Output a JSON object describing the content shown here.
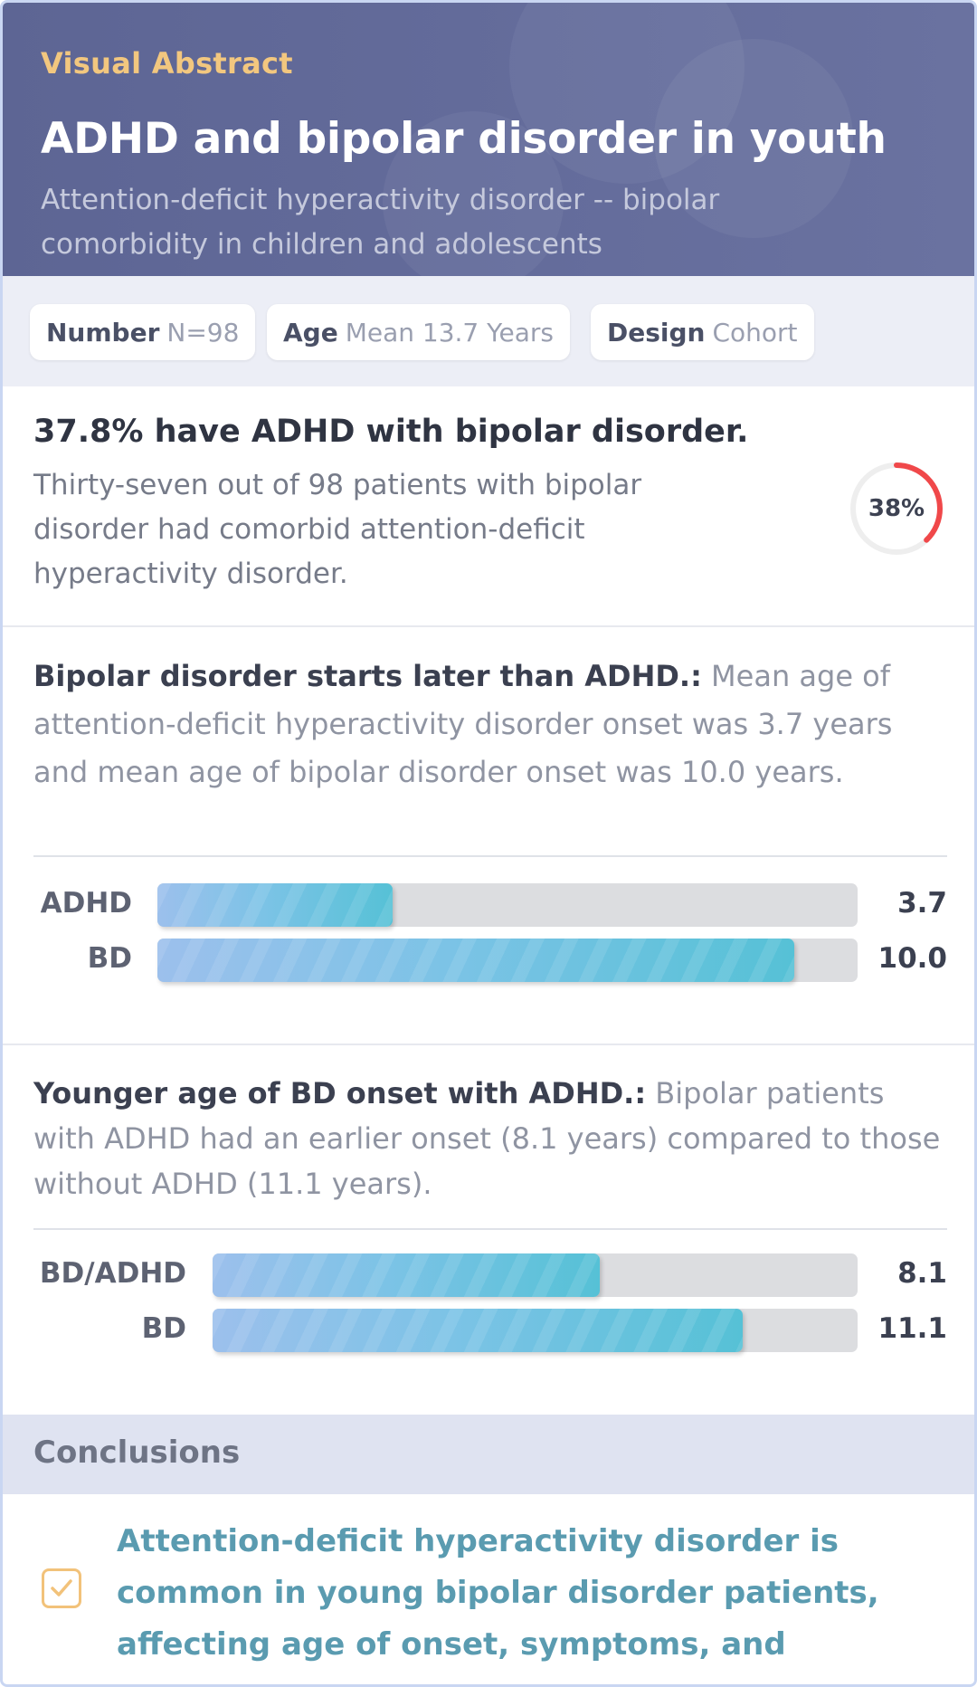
{
  "header": {
    "kicker": "Visual Abstract",
    "title": "ADHD and bipolar disorder in youth",
    "subtitle": "Attention-deficit hyperactivity disorder -- bipolar comorbidity in children and adolescents"
  },
  "meta": {
    "number": {
      "label": "Number",
      "value": "N=98"
    },
    "age": {
      "label": "Age",
      "value": "Mean 13.7 Years"
    },
    "design": {
      "label": "Design",
      "value": "Cohort"
    }
  },
  "finding1": {
    "headline": "37.8% have ADHD with bipolar disorder.",
    "body": "Thirty-seven out of 98 patients with bipolar disorder had comorbid attention-deficit hyperactivity disorder.",
    "ring_label": "38%",
    "ring_fraction": 0.378,
    "ring_color": "#f0484a",
    "ring_track_color": "#eeeeee"
  },
  "finding2": {
    "title": "Bipolar disorder starts later than ADHD.:",
    "text": "Mean age of attention-deficit hyperactivity disorder onset was 3.7 years and mean age of bipolar disorder onset was 10.0 years."
  },
  "finding3": {
    "title": "Younger age of BD onset with ADHD.:",
    "text": "Bipolar patients with ADHD had an earlier onset (8.1 years) compared to those without ADHD (11.1 years)."
  },
  "chart_data": [
    {
      "type": "bar",
      "orientation": "horizontal",
      "categories": [
        "ADHD",
        "BD"
      ],
      "values": [
        3.7,
        10.0
      ],
      "value_labels": [
        "3.7",
        "10.0"
      ],
      "xlim": [
        0,
        11
      ]
    },
    {
      "type": "bar",
      "orientation": "horizontal",
      "categories": [
        "BD/ADHD",
        "BD"
      ],
      "values": [
        8.1,
        11.1
      ],
      "value_labels": [
        "8.1",
        "11.1"
      ],
      "xlim": [
        0,
        13.5
      ]
    }
  ],
  "conclusions": {
    "heading": "Conclusions",
    "text": "Attention-deficit hyperactivity disorder is common in young bipolar disorder patients, affecting age of onset, symptoms, and outcomes.",
    "check_icon": "check-icon",
    "accent": "#f2c27a"
  }
}
